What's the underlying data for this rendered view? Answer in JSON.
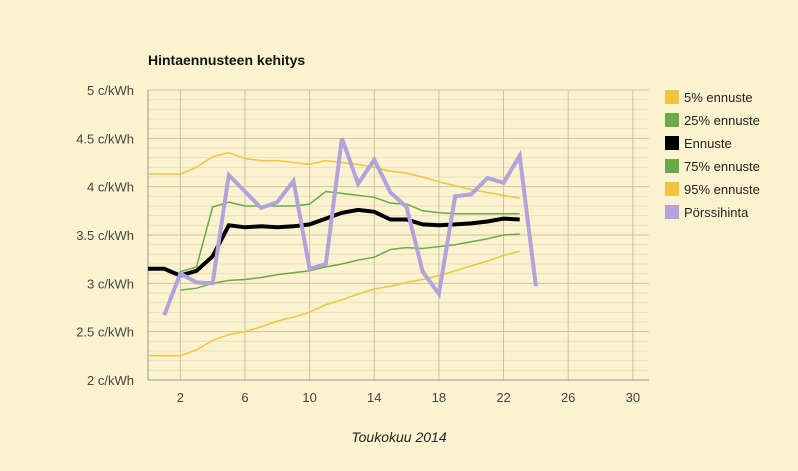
{
  "chart_data": {
    "type": "line",
    "title": "Hintaennusteen kehitys",
    "xlabel": "Toukokuu 2014",
    "ylabel": "",
    "xlim": [
      0,
      31
    ],
    "ylim": [
      2,
      5
    ],
    "grid": true,
    "legend_position": "right",
    "x_ticks": [
      2,
      6,
      10,
      14,
      18,
      22,
      26,
      30
    ],
    "y_ticks": [
      {
        "value": 2,
        "label": "2 c/kWh"
      },
      {
        "value": 2.5,
        "label": "2.5 c/kWh"
      },
      {
        "value": 3,
        "label": "3 c/kWh"
      },
      {
        "value": 3.5,
        "label": "3.5 c/kWh"
      },
      {
        "value": 4,
        "label": "4 c/kWh"
      },
      {
        "value": 4.5,
        "label": "4.5 c/kWh"
      },
      {
        "value": 5,
        "label": "5 c/kWh"
      }
    ],
    "series": [
      {
        "name": "5% ennuste",
        "color": "#f0c43c",
        "width": 1.5,
        "x": [
          0,
          1,
          2,
          3,
          4,
          5,
          6,
          7,
          8,
          9,
          10,
          11,
          12,
          13,
          14,
          15,
          16,
          17,
          18,
          19,
          20,
          21,
          22,
          23
        ],
        "y": [
          2.25,
          2.25,
          2.25,
          2.31,
          2.41,
          2.47,
          2.5,
          2.55,
          2.61,
          2.65,
          2.7,
          2.78,
          2.83,
          2.89,
          2.94,
          2.97,
          3.01,
          3.04,
          3.08,
          3.13,
          3.18,
          3.23,
          3.29,
          3.33
        ]
      },
      {
        "name": "25% ennuste",
        "color": "#6aaa4a",
        "width": 1.5,
        "x": [
          2,
          3,
          4,
          5,
          6,
          7,
          8,
          9,
          10,
          11,
          12,
          13,
          14,
          15,
          16,
          17,
          18,
          19,
          20,
          21,
          22,
          23
        ],
        "y": [
          2.93,
          2.95,
          3.0,
          3.03,
          3.04,
          3.06,
          3.09,
          3.11,
          3.13,
          3.17,
          3.2,
          3.24,
          3.27,
          3.35,
          3.37,
          3.36,
          3.38,
          3.4,
          3.43,
          3.46,
          3.5,
          3.51
        ]
      },
      {
        "name": "Ennuste",
        "color": "#000000",
        "width": 4,
        "x": [
          0,
          1,
          2,
          3,
          4,
          5,
          6,
          7,
          8,
          9,
          10,
          11,
          12,
          13,
          14,
          15,
          16,
          17,
          18,
          19,
          20,
          21,
          22,
          23
        ],
        "y": [
          3.15,
          3.15,
          3.08,
          3.13,
          3.28,
          3.6,
          3.58,
          3.59,
          3.58,
          3.59,
          3.61,
          3.67,
          3.73,
          3.76,
          3.74,
          3.66,
          3.66,
          3.61,
          3.6,
          3.61,
          3.62,
          3.64,
          3.67,
          3.66
        ]
      },
      {
        "name": "75% ennuste",
        "color": "#6aaa4a",
        "width": 1.5,
        "x": [
          2,
          3,
          4,
          5,
          6,
          7,
          8,
          9,
          10,
          11,
          12,
          13,
          14,
          15,
          16,
          17,
          18,
          19,
          20,
          21,
          22,
          23
        ],
        "y": [
          3.12,
          3.17,
          3.79,
          3.84,
          3.8,
          3.8,
          3.8,
          3.8,
          3.82,
          3.95,
          3.93,
          3.91,
          3.89,
          3.83,
          3.82,
          3.75,
          3.73,
          3.72,
          3.72,
          3.72,
          3.72,
          3.72
        ]
      },
      {
        "name": "95% ennuste",
        "color": "#f0c43c",
        "width": 1.5,
        "x": [
          0,
          1,
          2,
          3,
          4,
          5,
          6,
          7,
          8,
          9,
          10,
          11,
          12,
          13,
          14,
          15,
          16,
          17,
          18,
          19,
          20,
          21,
          22,
          23
        ],
        "y": [
          4.13,
          4.13,
          4.13,
          4.2,
          4.31,
          4.35,
          4.29,
          4.27,
          4.27,
          4.25,
          4.23,
          4.27,
          4.25,
          4.23,
          4.2,
          4.16,
          4.14,
          4.1,
          4.05,
          4.01,
          3.97,
          3.94,
          3.91,
          3.88
        ]
      },
      {
        "name": "Pörssihinta",
        "color": "#b3a3dc",
        "width": 4,
        "x": [
          1,
          2,
          3,
          4,
          5,
          6,
          7,
          8,
          9,
          10,
          11,
          12,
          13,
          14,
          15,
          16,
          17,
          18,
          19,
          20,
          21,
          22,
          23,
          24
        ],
        "y": [
          2.67,
          3.1,
          3.01,
          3.0,
          4.12,
          3.95,
          3.78,
          3.84,
          4.06,
          3.15,
          3.2,
          4.5,
          4.03,
          4.28,
          3.94,
          3.79,
          3.12,
          2.89,
          3.9,
          3.92,
          4.09,
          4.04,
          4.32,
          2.97
        ]
      }
    ]
  }
}
